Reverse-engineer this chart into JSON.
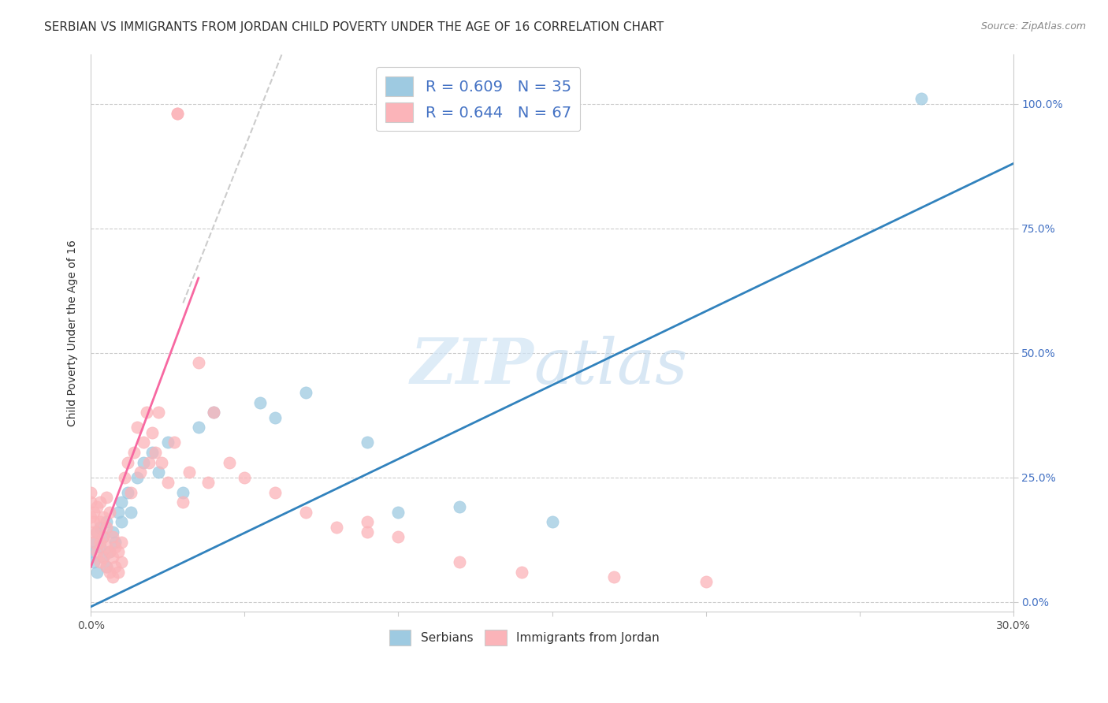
{
  "title": "SERBIAN VS IMMIGRANTS FROM JORDAN CHILD POVERTY UNDER THE AGE OF 16 CORRELATION CHART",
  "source": "Source: ZipAtlas.com",
  "ylabel": "Child Poverty Under the Age of 16",
  "xlim": [
    0.0,
    0.3
  ],
  "ylim": [
    -0.02,
    1.1
  ],
  "watermark_zip": "ZIP",
  "watermark_atlas": "atlas",
  "legend_serbian_R": "R = 0.609",
  "legend_serbian_N": "N = 35",
  "legend_jordan_R": "R = 0.644",
  "legend_jordan_N": "N = 67",
  "serbian_color": "#9ecae1",
  "jordan_color": "#fbb4b9",
  "serbian_line_color": "#3182bd",
  "jordan_line_color": "#f768a1",
  "background_color": "#ffffff",
  "grid_color": "#cccccc",
  "title_fontsize": 11,
  "axis_label_fontsize": 10,
  "tick_fontsize": 10,
  "legend_fontsize": 14,
  "right_tick_color": "#4472c4",
  "serbian_scatter_x": [
    0.0,
    0.001,
    0.001,
    0.002,
    0.002,
    0.003,
    0.003,
    0.004,
    0.004,
    0.005,
    0.005,
    0.006,
    0.007,
    0.008,
    0.009,
    0.01,
    0.01,
    0.012,
    0.013,
    0.015,
    0.017,
    0.02,
    0.022,
    0.025,
    0.03,
    0.035,
    0.04,
    0.055,
    0.06,
    0.07,
    0.09,
    0.1,
    0.12,
    0.15,
    0.27
  ],
  "serbian_scatter_y": [
    0.1,
    0.08,
    0.12,
    0.06,
    0.14,
    0.11,
    0.15,
    0.09,
    0.13,
    0.07,
    0.16,
    0.1,
    0.14,
    0.12,
    0.18,
    0.16,
    0.2,
    0.22,
    0.18,
    0.25,
    0.28,
    0.3,
    0.26,
    0.32,
    0.22,
    0.35,
    0.38,
    0.4,
    0.37,
    0.42,
    0.32,
    0.18,
    0.19,
    0.16,
    1.01
  ],
  "jordan_scatter_x": [
    0.0,
    0.0,
    0.0,
    0.001,
    0.001,
    0.001,
    0.001,
    0.002,
    0.002,
    0.002,
    0.003,
    0.003,
    0.003,
    0.003,
    0.004,
    0.004,
    0.004,
    0.005,
    0.005,
    0.005,
    0.005,
    0.006,
    0.006,
    0.006,
    0.007,
    0.007,
    0.007,
    0.008,
    0.008,
    0.009,
    0.009,
    0.01,
    0.01,
    0.011,
    0.012,
    0.013,
    0.014,
    0.015,
    0.016,
    0.017,
    0.018,
    0.019,
    0.02,
    0.021,
    0.022,
    0.023,
    0.025,
    0.027,
    0.03,
    0.032,
    0.035,
    0.038,
    0.04,
    0.045,
    0.05,
    0.06,
    0.07,
    0.08,
    0.09,
    0.1,
    0.12,
    0.14,
    0.17,
    0.2,
    0.028,
    0.028,
    0.09
  ],
  "jordan_scatter_y": [
    0.2,
    0.22,
    0.17,
    0.14,
    0.18,
    0.12,
    0.16,
    0.1,
    0.14,
    0.19,
    0.08,
    0.12,
    0.16,
    0.2,
    0.09,
    0.13,
    0.17,
    0.07,
    0.11,
    0.15,
    0.21,
    0.06,
    0.1,
    0.18,
    0.05,
    0.09,
    0.13,
    0.07,
    0.11,
    0.06,
    0.1,
    0.08,
    0.12,
    0.25,
    0.28,
    0.22,
    0.3,
    0.35,
    0.26,
    0.32,
    0.38,
    0.28,
    0.34,
    0.3,
    0.38,
    0.28,
    0.24,
    0.32,
    0.2,
    0.26,
    0.48,
    0.24,
    0.38,
    0.28,
    0.25,
    0.22,
    0.18,
    0.15,
    0.16,
    0.13,
    0.08,
    0.06,
    0.05,
    0.04,
    0.98,
    0.98,
    0.14
  ],
  "serb_line_x0": 0.0,
  "serb_line_y0": -0.01,
  "serb_line_x1": 0.3,
  "serb_line_y1": 0.88,
  "jord_line_x0": 0.0,
  "jord_line_y0": 0.07,
  "jord_line_x1": 0.035,
  "jord_line_y1": 0.65
}
